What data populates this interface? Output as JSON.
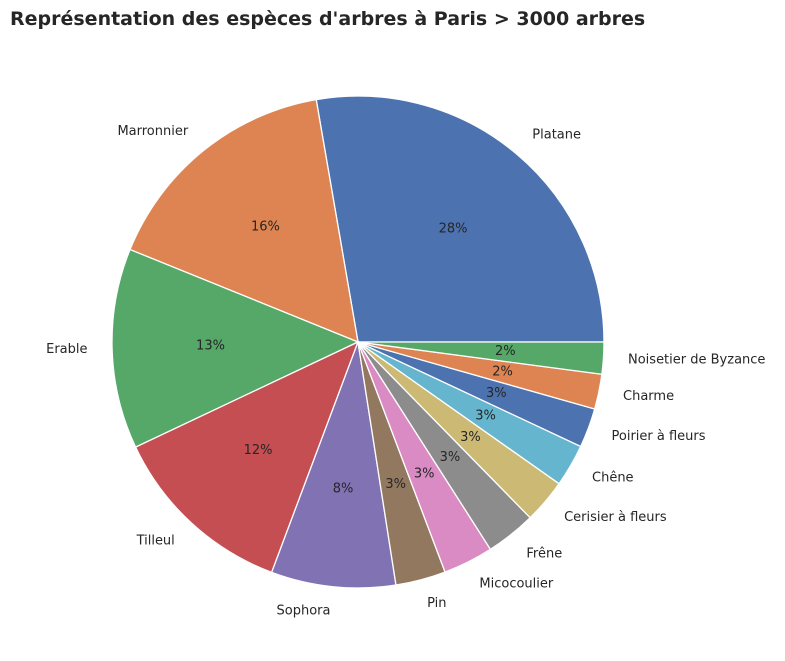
{
  "chart_data": {
    "type": "pie",
    "title": "Représentation des espèces d'arbres à Paris > 3000 arbres",
    "categories": [
      "Platane",
      "Marronnier",
      "Erable",
      "Tilleul",
      "Sophora",
      "Pin",
      "Micocoulier",
      "Frêne",
      "Cerisier à fleurs",
      "Chêne",
      "Poirier à fleurs",
      "Charme",
      "Noisetier de Byzance"
    ],
    "values": [
      27.8,
      16.2,
      13.2,
      12.3,
      8.2,
      3.3,
      3.3,
      3.3,
      2.9,
      2.8,
      2.6,
      2.3,
      2.1
    ],
    "percent_labels": [
      "28%",
      "16%",
      "13%",
      "12%",
      "8%",
      "3%",
      "3%",
      "3%",
      "3%",
      "3%",
      "3%",
      "2%",
      "2%"
    ],
    "colors": [
      "#4c72b0",
      "#dd8452",
      "#55a868",
      "#c44e52",
      "#8172b3",
      "#937860",
      "#da8bc3",
      "#8c8c8c",
      "#ccb974",
      "#64b5cd",
      "#4c72b0",
      "#dd8452",
      "#55a868"
    ],
    "start_angle_deg": 0,
    "direction": "counterclockwise"
  }
}
